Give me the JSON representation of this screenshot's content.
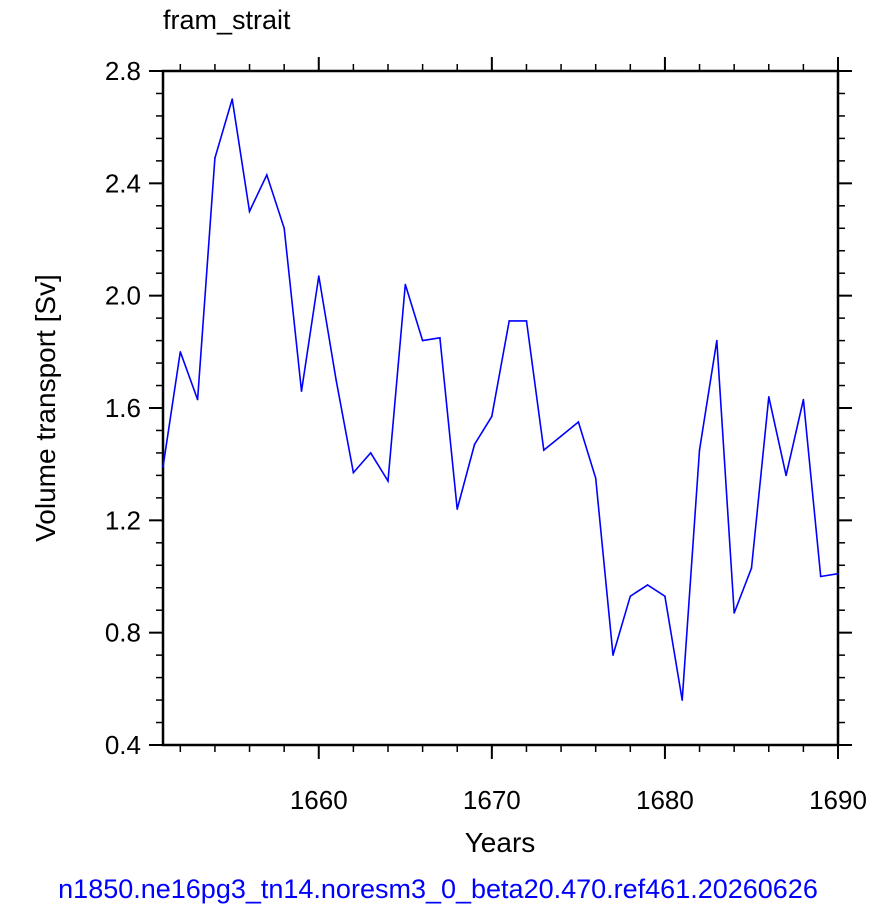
{
  "chart_data": {
    "type": "line",
    "title": "fram_strait",
    "xlabel": "Years",
    "ylabel": "Volume transport [Sv]",
    "xlim": [
      1651,
      1690
    ],
    "ylim": [
      0.4,
      2.8
    ],
    "x_ticks": [
      "1660",
      "1670",
      "1680",
      "1690"
    ],
    "y_ticks": [
      "0.4",
      "0.8",
      "1.2",
      "1.6",
      "2.0",
      "2.4",
      "2.8"
    ],
    "grid": false,
    "series": [
      {
        "color": "#0000ff",
        "x": [
          1651,
          1652,
          1653,
          1654,
          1655,
          1656,
          1657,
          1658,
          1659,
          1660,
          1661,
          1662,
          1663,
          1664,
          1665,
          1666,
          1667,
          1668,
          1669,
          1670,
          1671,
          1672,
          1673,
          1674,
          1675,
          1676,
          1677,
          1678,
          1679,
          1680,
          1681,
          1682,
          1683,
          1684,
          1685,
          1686,
          1687,
          1688,
          1689,
          1690
        ],
        "values": [
          1.39,
          1.8,
          1.63,
          2.49,
          2.7,
          2.3,
          2.43,
          2.24,
          1.66,
          2.07,
          1.7,
          1.37,
          1.44,
          1.34,
          2.04,
          1.84,
          1.85,
          1.24,
          1.47,
          1.57,
          1.91,
          1.91,
          1.45,
          1.5,
          1.55,
          1.35,
          0.72,
          0.93,
          0.97,
          0.93,
          0.56,
          1.45,
          1.84,
          0.87,
          1.03,
          1.64,
          1.36,
          1.63,
          1.0,
          1.01
        ]
      }
    ]
  },
  "footer": {
    "case_name": "n1850.ne16pg3_tn14.noresm3_0_beta20.470.ref461.20260626",
    "color": "#0000ff"
  }
}
